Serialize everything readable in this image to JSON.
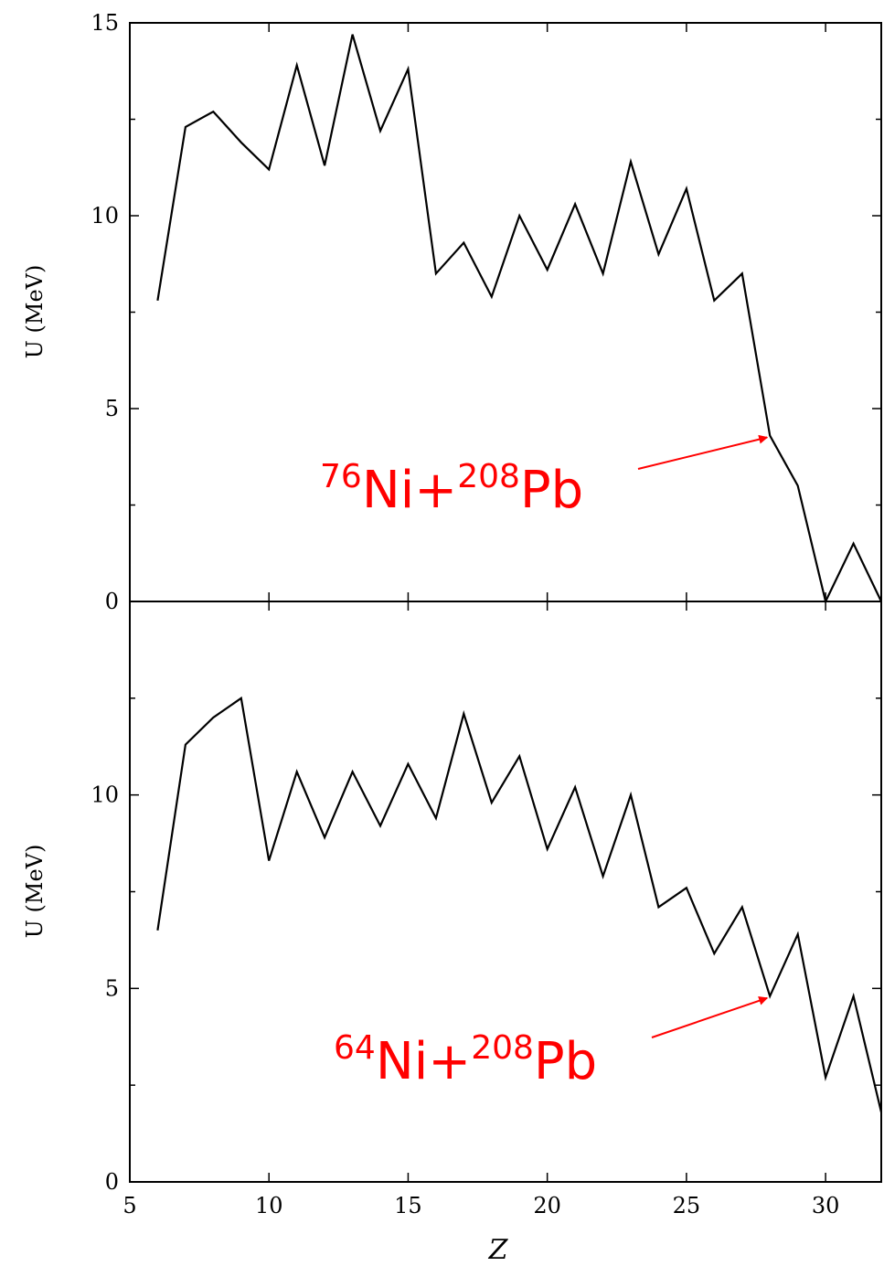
{
  "chart_data": [
    {
      "type": "line",
      "panel": "top",
      "title": "",
      "xlabel": "",
      "ylabel": "U (MeV)",
      "xlim": [
        5,
        32
      ],
      "ylim": [
        0,
        15
      ],
      "yticks": [
        0,
        5,
        10,
        15
      ],
      "x_tick_labels_shown": false,
      "series": [
        {
          "color": "#000000",
          "x": [
            6,
            7,
            8,
            9,
            10,
            11,
            12,
            13,
            14,
            15,
            16,
            17,
            18,
            19,
            20,
            21,
            22,
            23,
            24,
            25,
            26,
            27,
            28,
            29,
            30,
            31,
            32
          ],
          "y": [
            7.8,
            12.3,
            12.7,
            11.9,
            11.2,
            13.9,
            11.3,
            14.7,
            12.2,
            13.8,
            8.5,
            9.3,
            7.9,
            10.0,
            8.6,
            10.3,
            8.5,
            11.4,
            9.0,
            10.7,
            7.8,
            8.5,
            4.3,
            3.0,
            0.0,
            1.5,
            0.0
          ]
        }
      ],
      "annotation": {
        "mass1": "76",
        "el1": "Ni+",
        "mass2": "208",
        "el2": "Pb",
        "color": "#ff0000",
        "arrow_to": [
          28,
          4.3
        ]
      }
    },
    {
      "type": "line",
      "panel": "bottom",
      "title": "",
      "xlabel": "Z",
      "ylabel": "U (MeV)",
      "xlim": [
        5,
        32
      ],
      "ylim": [
        0,
        15
      ],
      "xticks": [
        5,
        10,
        15,
        20,
        25,
        30
      ],
      "yticks": [
        0,
        5,
        10
      ],
      "series": [
        {
          "color": "#000000",
          "x": [
            6,
            7,
            8,
            9,
            10,
            11,
            12,
            13,
            14,
            15,
            16,
            17,
            18,
            19,
            20,
            21,
            22,
            23,
            24,
            25,
            26,
            27,
            28,
            29,
            30,
            31,
            32
          ],
          "y": [
            6.5,
            11.3,
            12.0,
            12.5,
            8.3,
            10.6,
            8.9,
            10.6,
            9.2,
            10.8,
            9.4,
            12.1,
            9.8,
            11.0,
            8.6,
            10.2,
            7.9,
            10.0,
            7.1,
            7.6,
            5.9,
            7.1,
            4.8,
            6.4,
            2.7,
            4.8,
            1.8
          ]
        }
      ],
      "annotation": {
        "mass1": "64",
        "el1": "Ni+",
        "mass2": "208",
        "el2": "Pb",
        "color": "#ff0000",
        "arrow_to": [
          28,
          4.8
        ]
      }
    }
  ]
}
